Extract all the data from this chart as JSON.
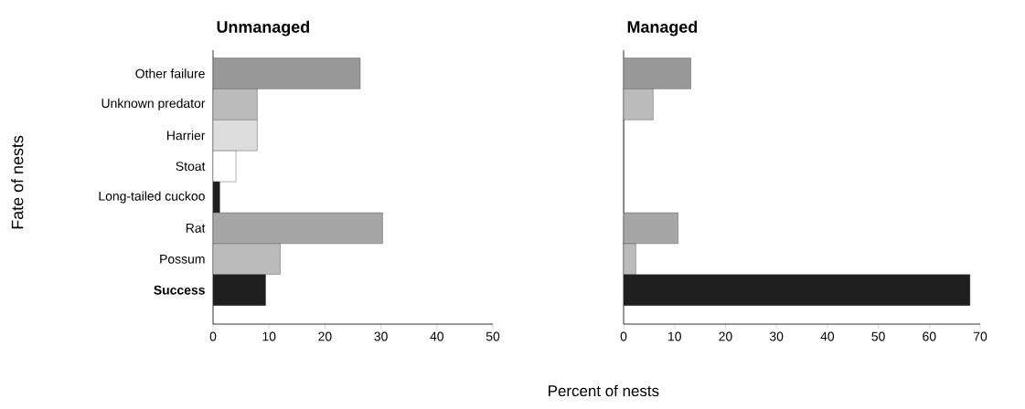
{
  "chart_data": [
    {
      "type": "bar",
      "orientation": "horizontal",
      "title": "Unmanaged",
      "ylabel": "Fate of nests",
      "xlabel": "Percent of nests",
      "categories": [
        "Other failure",
        "Unknown predator",
        "Harrier",
        "Stoat",
        "Long-tailed cuckoo",
        "Rat",
        "Possum",
        "**Success**"
      ],
      "values": [
        26.3,
        7.9,
        7.9,
        4.1,
        1.2,
        30.3,
        12.0,
        9.4
      ],
      "colors": [
        "#999999",
        "#bbbbbb",
        "#dddddd",
        "#ffffff",
        "#1e1e1e",
        "#a6a6a6",
        "#bbbbbb",
        "#1e1e1e"
      ],
      "xlim": [
        0,
        50
      ],
      "xticks": [
        0,
        10,
        20,
        30,
        40,
        50
      ]
    },
    {
      "type": "bar",
      "orientation": "horizontal",
      "title": "Managed",
      "categories": [
        null,
        null,
        null,
        null,
        null,
        null,
        null,
        null
      ],
      "values": [
        13.2,
        5.8,
        0,
        0,
        0,
        10.7,
        2.4,
        68
      ],
      "colors": [
        "#999999",
        "#bbbbbb",
        "#dddddd",
        "#ffffff",
        "#1e1e1e",
        "#a6a6a6",
        "#bbbbbb",
        "#1e1e1e"
      ],
      "xlim": [
        0,
        70
      ],
      "xticks": [
        0,
        10,
        20,
        30,
        40,
        50,
        60,
        70
      ],
      "tick_labels": "x"
    }
  ]
}
